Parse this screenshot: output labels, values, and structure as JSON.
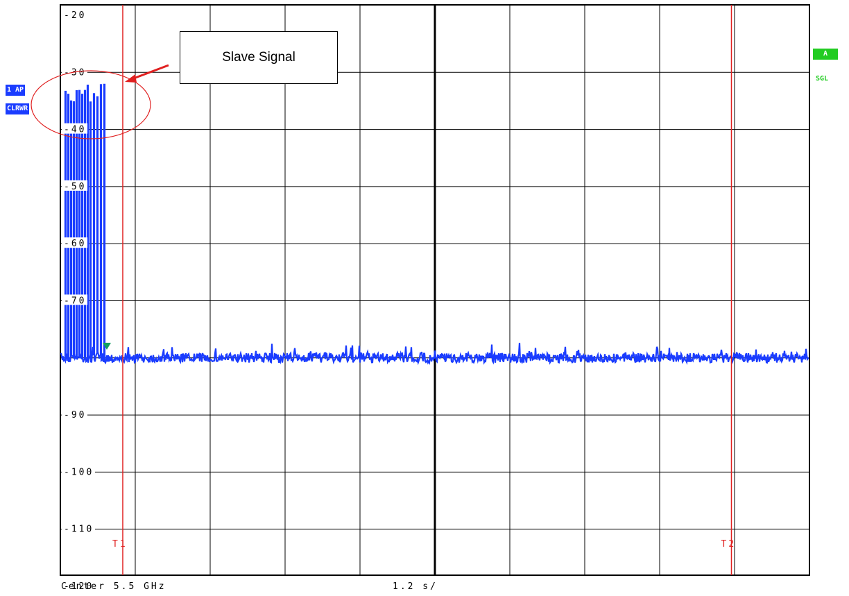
{
  "instrument": {
    "trace_label": "1 AP",
    "detector_label": "CLRWR",
    "trace_indicator": "A",
    "sweep_mode": "SGL",
    "center_label": "Center 5.5 GHz",
    "span_label": "1.2 s/",
    "colors": {
      "trace": "#1a3cff",
      "marker_line": "#e02020",
      "trace_badge": "#1a3cff",
      "indicator_badge": "#22cc22",
      "grid": "#000000"
    }
  },
  "annotation": {
    "callout_text": "Slave Signal"
  },
  "chart_data": {
    "type": "line",
    "title": "",
    "xlabel": "",
    "ylabel": "",
    "xlim": [
      0,
      12
    ],
    "ylim": [
      -125,
      -17
    ],
    "yticks": [
      -20,
      -30,
      -40,
      -50,
      -60,
      -70,
      -80,
      -90,
      -100,
      -110,
      -120
    ],
    "ytick_labels": [
      "-20",
      "-30",
      "-40",
      "-50",
      "-60",
      "-70",
      "",
      "-90",
      "-100",
      "-110",
      "-120"
    ],
    "grid": true,
    "noise_floor_dbm": -80,
    "burst_region_s": [
      0,
      0.75
    ],
    "burst_peak_dbm": -32,
    "markers": [
      {
        "label": "T1",
        "x": 1.0
      },
      {
        "label": "T2",
        "x": 10.75
      }
    ]
  }
}
